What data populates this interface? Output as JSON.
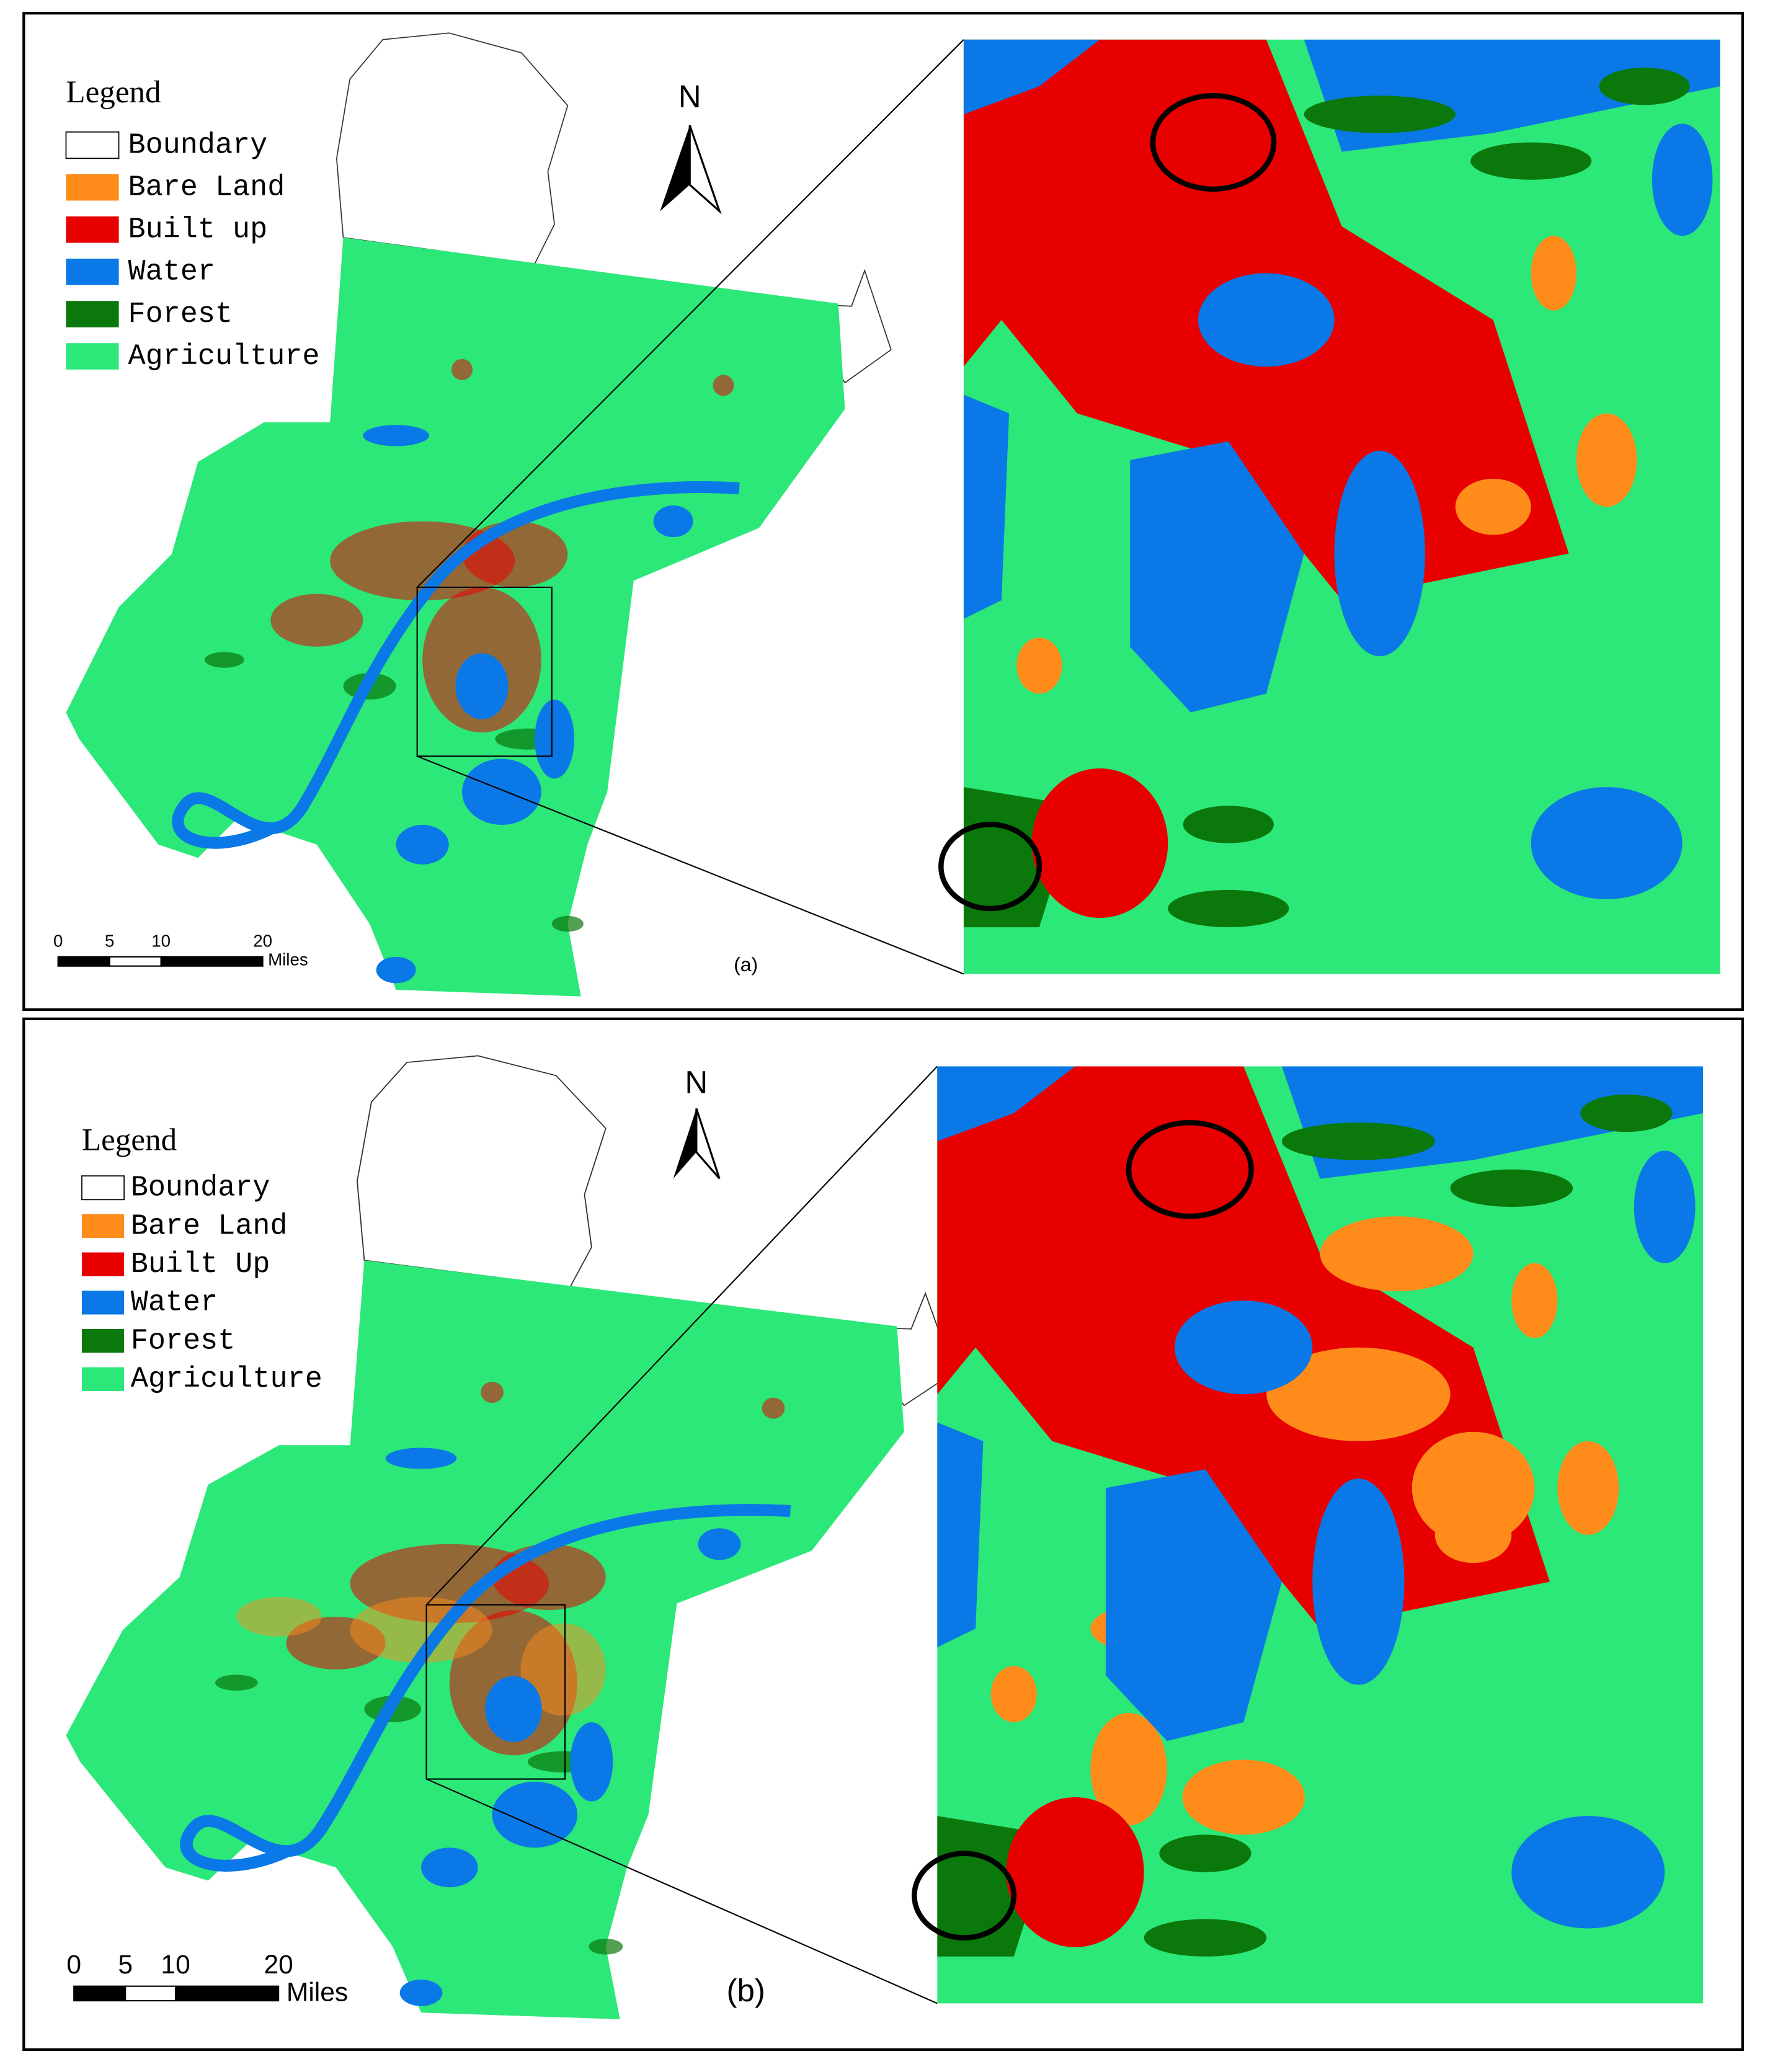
{
  "panels": [
    {
      "label": "(a)",
      "north": "N",
      "legend": {
        "title": "Legend",
        "items": [
          {
            "label": "Boundary",
            "color": "#ffffff"
          },
          {
            "label": "Bare Land",
            "color": "#ff8c1a"
          },
          {
            "label": "Built up",
            "color": "#e80000"
          },
          {
            "label": "Water",
            "color": "#0a78e6"
          },
          {
            "label": "Forest",
            "color": "#0a780a"
          },
          {
            "label": "Agriculture",
            "color": "#2be878"
          }
        ]
      },
      "scale": {
        "ticks": [
          0,
          5,
          10,
          20
        ],
        "unit": "Miles"
      }
    },
    {
      "label": "(b)",
      "north": "N",
      "legend": {
        "title": "Legend",
        "items": [
          {
            "label": "Boundary",
            "color": "#ffffff"
          },
          {
            "label": "Bare Land",
            "color": "#ff8c1a"
          },
          {
            "label": "Built Up",
            "color": "#e80000"
          },
          {
            "label": "Water",
            "color": "#0a78e6"
          },
          {
            "label": "Forest",
            "color": "#0a780a"
          },
          {
            "label": "Agriculture",
            "color": "#2be878"
          }
        ]
      },
      "scale": {
        "ticks": [
          0,
          5,
          10,
          20
        ],
        "unit": "Miles"
      }
    }
  ]
}
